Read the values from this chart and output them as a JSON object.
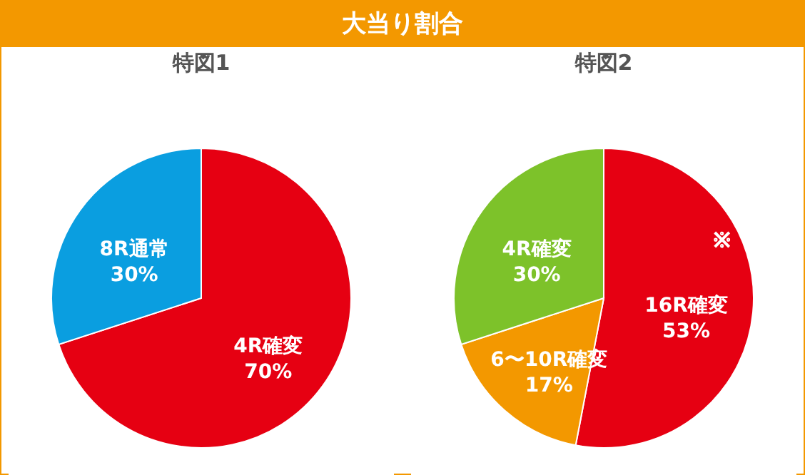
{
  "chart_data": [
    {
      "type": "other",
      "title": "大当り割合"
    },
    {
      "type": "pie",
      "title": "特図1",
      "categories": [
        "4R確変",
        "8R通常"
      ],
      "values": [
        70,
        30
      ],
      "value_labels": [
        "70%",
        "30%"
      ],
      "colors": [
        "#e60012",
        "#0a9ee0"
      ]
    },
    {
      "type": "pie",
      "title": "特図2",
      "categories": [
        "16R確変",
        "6〜10R確変",
        "4R確変"
      ],
      "values": [
        53,
        17,
        30
      ],
      "value_labels": [
        "53%",
        "17%",
        "30%"
      ],
      "colors": [
        "#e60012",
        "#f39800",
        "#7dc22a"
      ],
      "annotations": [
        "※"
      ]
    }
  ]
}
